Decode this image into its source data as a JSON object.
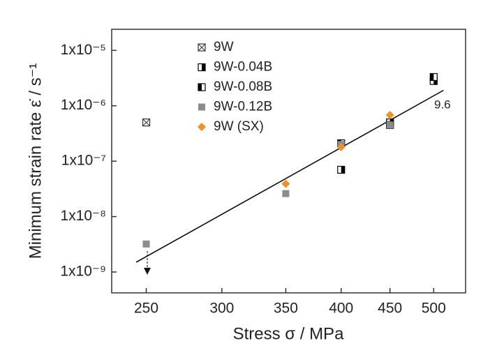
{
  "chart_data": {
    "type": "scatter",
    "x_label": "Stress σ / MPa",
    "y_label": "Minimum strain rate ε̇ / s⁻¹",
    "xscale": "log",
    "yscale": "log",
    "xlim": [
      230,
      540
    ],
    "ylim": [
      4.2e-10,
      2.4e-05
    ],
    "xticks": [
      250,
      300,
      350,
      400,
      450,
      500
    ],
    "yticks": [
      {
        "value": 1e-09,
        "label": "1x10⁻⁹"
      },
      {
        "value": 1e-08,
        "label": "1x10⁻⁸"
      },
      {
        "value": 1e-07,
        "label": "1x10⁻⁷"
      },
      {
        "value": 1e-06,
        "label": "1x10⁻⁶"
      },
      {
        "value": 1e-05,
        "label": "1x10⁻⁵"
      }
    ],
    "series": [
      {
        "name": "9W",
        "color": "#333333",
        "marker": "square-x",
        "x": [
          250
        ],
        "values": [
          5e-07
        ]
      },
      {
        "name": "9W-0.04B",
        "color": "#000000",
        "marker": "half-right",
        "x": [
          400,
          450,
          500
        ],
        "values": [
          7e-08,
          5e-07,
          2.8e-06
        ]
      },
      {
        "name": "9W-0.08B",
        "color": "#000000",
        "marker": "half-left",
        "x": [
          400,
          450,
          500
        ],
        "values": [
          2.1e-07,
          4.5e-07,
          3.3e-06
        ]
      },
      {
        "name": "9W-0.12B",
        "color": "#8c8c8c",
        "marker": "square",
        "x": [
          250,
          350,
          400,
          450
        ],
        "values": [
          3.2e-09,
          2.6e-08,
          2e-07,
          4.5e-07
        ]
      },
      {
        "name": "9W (SX)",
        "color": "#f0922b",
        "marker": "diamond",
        "x": [
          350,
          400,
          450
        ],
        "values": [
          3.9e-08,
          1.8e-07,
          6.8e-07
        ]
      }
    ],
    "fit_line": {
      "color": "#000000",
      "x": [
        244,
        512
      ],
      "values": [
        1.5e-09,
        1.9e-06
      ]
    },
    "annotation": "9.6"
  }
}
